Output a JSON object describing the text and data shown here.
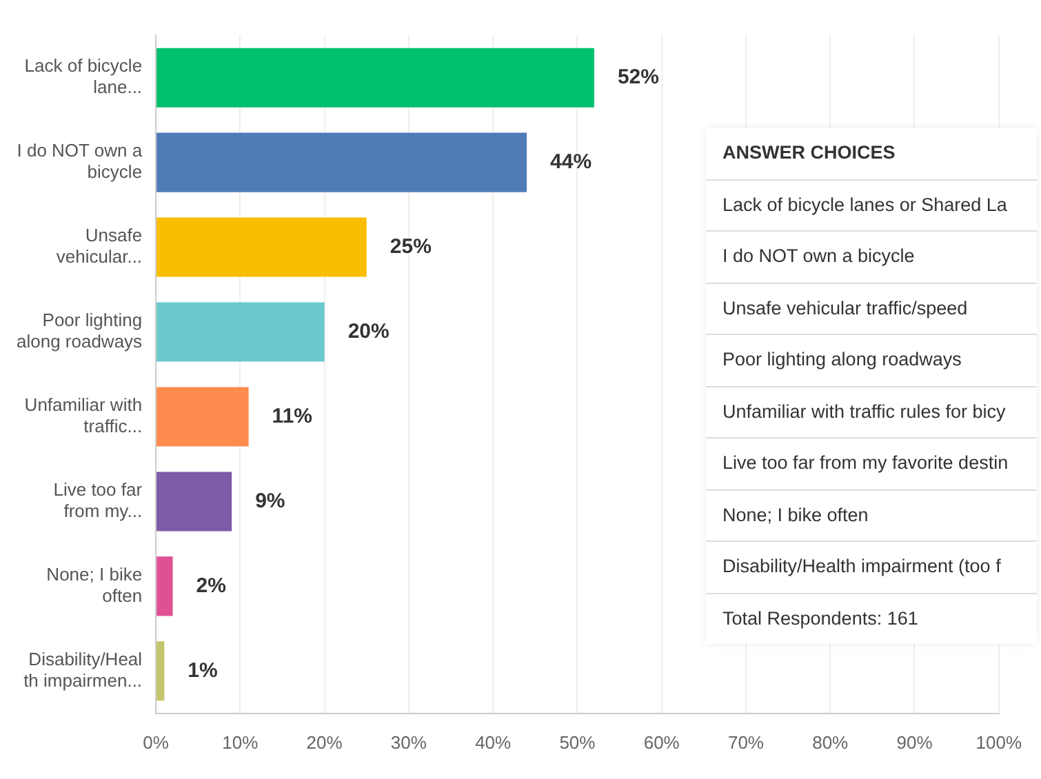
{
  "chart_data": {
    "type": "bar",
    "orientation": "horizontal",
    "categories": [
      "Lack of bicycle lane...",
      "I do NOT own a bicycle",
      "Unsafe vehicular...",
      "Poor lighting along roadways",
      "Unfamiliar with traffic...",
      "Live too far from my...",
      "None; I bike often",
      "Disability/Heal th impairmen..."
    ],
    "values": [
      52,
      44,
      25,
      20,
      11,
      9,
      2,
      1
    ],
    "colors": [
      "#00bf6f",
      "#507cb6",
      "#f9be00",
      "#6bc8cd",
      "#ff8b4f",
      "#7d5ba6",
      "#e05194",
      "#c4c46a"
    ],
    "value_labels": [
      "52%",
      "44%",
      "25%",
      "20%",
      "11%",
      "9%",
      "2%",
      "1%"
    ],
    "xlim": [
      0,
      100
    ],
    "xticks": [
      {
        "value": 0,
        "label": "0%"
      },
      {
        "value": 10,
        "label": "10%"
      },
      {
        "value": 20,
        "label": "20%"
      },
      {
        "value": 30,
        "label": "30%"
      },
      {
        "value": 40,
        "label": "40%"
      },
      {
        "value": 50,
        "label": "50%"
      },
      {
        "value": 60,
        "label": "60%"
      },
      {
        "value": 70,
        "label": "70%"
      },
      {
        "value": 80,
        "label": "80%"
      },
      {
        "value": 90,
        "label": "90%"
      },
      {
        "value": 100,
        "label": "100%"
      }
    ],
    "grid": "x",
    "legend": false,
    "annotations": [
      "ANSWER CHOICES",
      "Lack of bicycle lanes or Shared La",
      "I do NOT own a bicycle",
      "Unsafe vehicular traffic/speed",
      "Poor lighting along roadways",
      "Unfamiliar with traffic rules for bicy",
      "Live too far from my favorite destin",
      "None; I bike often",
      "Disability/Health impairment (too f",
      "Total Respondents: 161"
    ]
  }
}
